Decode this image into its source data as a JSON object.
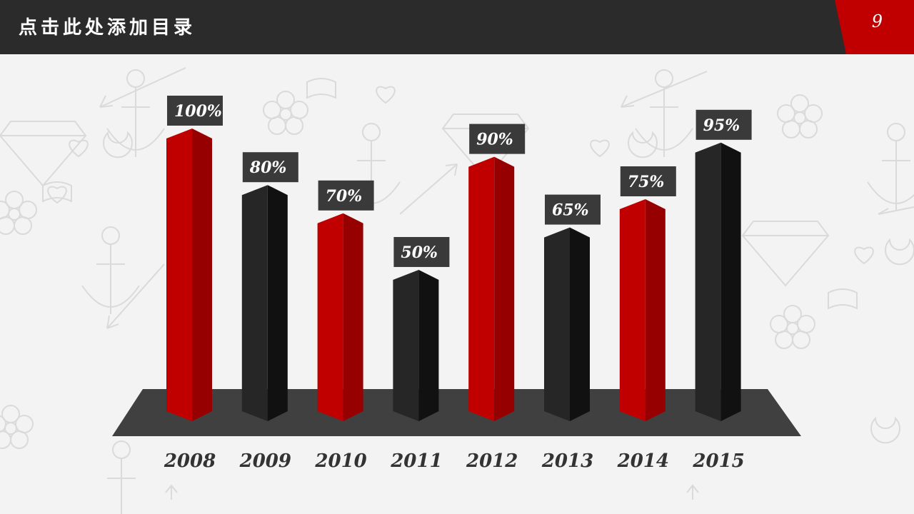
{
  "header": {
    "title": "点击此处添加目录",
    "page_number": "9"
  },
  "colors": {
    "red": "#c00000",
    "dark": "#262626",
    "header": "#2b2b2b",
    "platform": "#404040",
    "background": "#f3f3f3"
  },
  "chart_data": {
    "type": "bar",
    "categories": [
      "2008",
      "2009",
      "2010",
      "2011",
      "2012",
      "2013",
      "2014",
      "2015"
    ],
    "values": [
      100,
      80,
      70,
      50,
      90,
      65,
      75,
      95
    ],
    "labels": [
      "100%",
      "80%",
      "70%",
      "50%",
      "90%",
      "65%",
      "75%",
      "95%"
    ],
    "bar_colors": [
      "red",
      "dark",
      "red",
      "dark",
      "red",
      "dark",
      "red",
      "dark"
    ],
    "ylim": [
      0,
      100
    ],
    "title": "",
    "xlabel": "",
    "ylabel": "",
    "grid": false
  }
}
